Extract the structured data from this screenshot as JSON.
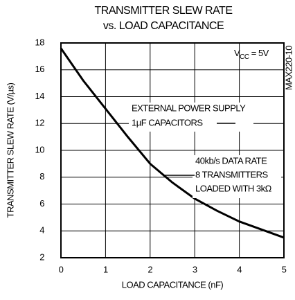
{
  "chart_data": {
    "type": "line",
    "title": [
      "TRANSMITTER SLEW RATE",
      "vs. LOAD CAPACITANCE"
    ],
    "x_label": "LOAD CAPACITANCE (nF)",
    "y_label": "TRANSMITTER SLEW RATE (V/µs)",
    "x": [
      0,
      0.5,
      1,
      1.5,
      2,
      2.5,
      3,
      3.5,
      4,
      4.5,
      5
    ],
    "series": [
      {
        "color": "#000000",
        "values": [
          17.6,
          15.2,
          13.1,
          11.0,
          9.0,
          7.6,
          6.4,
          5.5,
          4.7,
          4.1,
          3.5
        ]
      }
    ],
    "xlim": [
      0,
      5
    ],
    "xticks": [
      0,
      1,
      2,
      3,
      4,
      5
    ],
    "ylim": [
      2,
      18
    ],
    "yticks": [
      2,
      4,
      6,
      8,
      10,
      12,
      14,
      16,
      18
    ],
    "grid": true,
    "annotations": {
      "vcc": [
        "V",
        "CC",
        " = 5V"
      ],
      "part": "MAX220-10",
      "supply": [
        "EXTERNAL POWER SUPPLY",
        "1µF CAPACITORS"
      ],
      "load": [
        "40kb/s DATA RATE",
        "8 TRANSMITTERS",
        "LOADED WITH 3kΩ"
      ]
    }
  }
}
